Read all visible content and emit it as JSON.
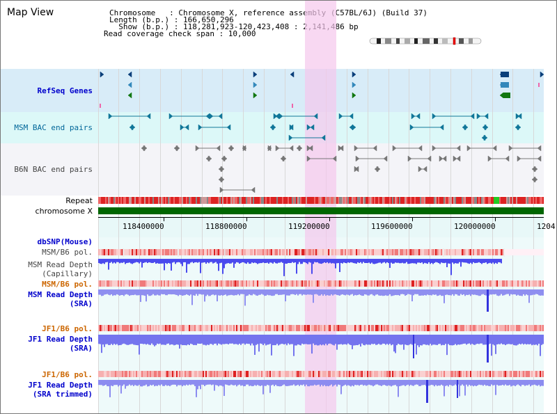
{
  "header": {
    "title": "Map View",
    "line1": "Chromosome   : Chromosome X, reference assembly (C57BL/6J) (Build 37)",
    "line2": "Length (b.p.) : 166,650,296",
    "line3": "  Show (b.p.) : 118,281,923-120,423,408 : 2,141,486 bp",
    "line4": "Read coverage check span : 10,000"
  },
  "tracks": {
    "refseq": "RefSeq Genes",
    "msm_bac": "MSM BAC end pairs",
    "b6n_bac": "B6N BAC end pairs",
    "repeat": "Repeat",
    "chromosome": "chromosome X",
    "dbsnp": "dbSNP(Mouse)",
    "msm_b6_pol_1": "MSM/B6 pol.",
    "msm_read_depth_cap_1": "MSM Read Depth",
    "msm_read_depth_cap_2": "(Capillary)",
    "msm_b6_pol_2": "MSM/B6 pol.",
    "msm_read_depth_sra_1": "MSM Read Depth",
    "msm_read_depth_sra_2": "(SRA)",
    "jf1_b6_pol_1": "JF1/B6 pol.",
    "jf1_read_depth_sra_1": "JF1 Read Depth",
    "jf1_read_depth_sra_2": "(SRA)",
    "jf1_b6_pol_2": "JF1/B6 pol.",
    "jf1_read_depth_trim_1": "JF1 Read Depth",
    "jf1_read_depth_trim_2": "(SRA trimmed)"
  },
  "ruler": {
    "ticks": [
      "118400000",
      "118800000",
      "119200000",
      "119600000",
      "120000000",
      "1204"
    ]
  },
  "colors": {
    "highlight": "#f5c8ec",
    "refseq_bg": "#d8ecf8",
    "msm_bac_bg": "#dcf8f8",
    "b6n_bac_bg": "#f4f4f8",
    "chromosome_bar": "#006600",
    "depth_blue": "#4444ee",
    "pol_red": "#ee3333"
  }
}
